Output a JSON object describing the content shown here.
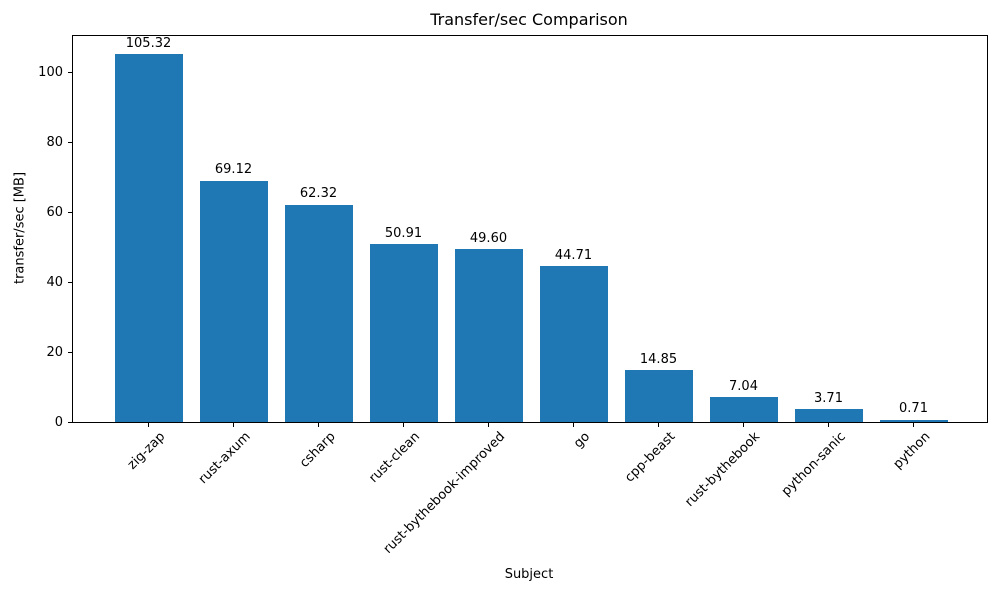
{
  "chart_data": {
    "type": "bar",
    "title": "Transfer/sec Comparison",
    "xlabel": "Subject",
    "ylabel": "transfer/sec [MB]",
    "categories": [
      "zig-zap",
      "rust-axum",
      "csharp",
      "rust-clean",
      "rust-bythebook-improved",
      "go",
      "cpp-beast",
      "rust-bythebook",
      "python-sanic",
      "python"
    ],
    "values": [
      105.32,
      69.12,
      62.32,
      50.91,
      49.6,
      44.71,
      14.85,
      7.04,
      3.71,
      0.71
    ],
    "value_labels": [
      "105.32",
      "69.12",
      "62.32",
      "50.91",
      "49.60",
      "44.71",
      "14.85",
      "7.04",
      "3.71",
      "0.71"
    ],
    "yticks": [
      0,
      20,
      40,
      60,
      80,
      100
    ],
    "ylim": [
      0,
      110.6
    ],
    "bar_color": "#1f77b4",
    "text_color": "#000000",
    "grid": false,
    "legend": null
  }
}
